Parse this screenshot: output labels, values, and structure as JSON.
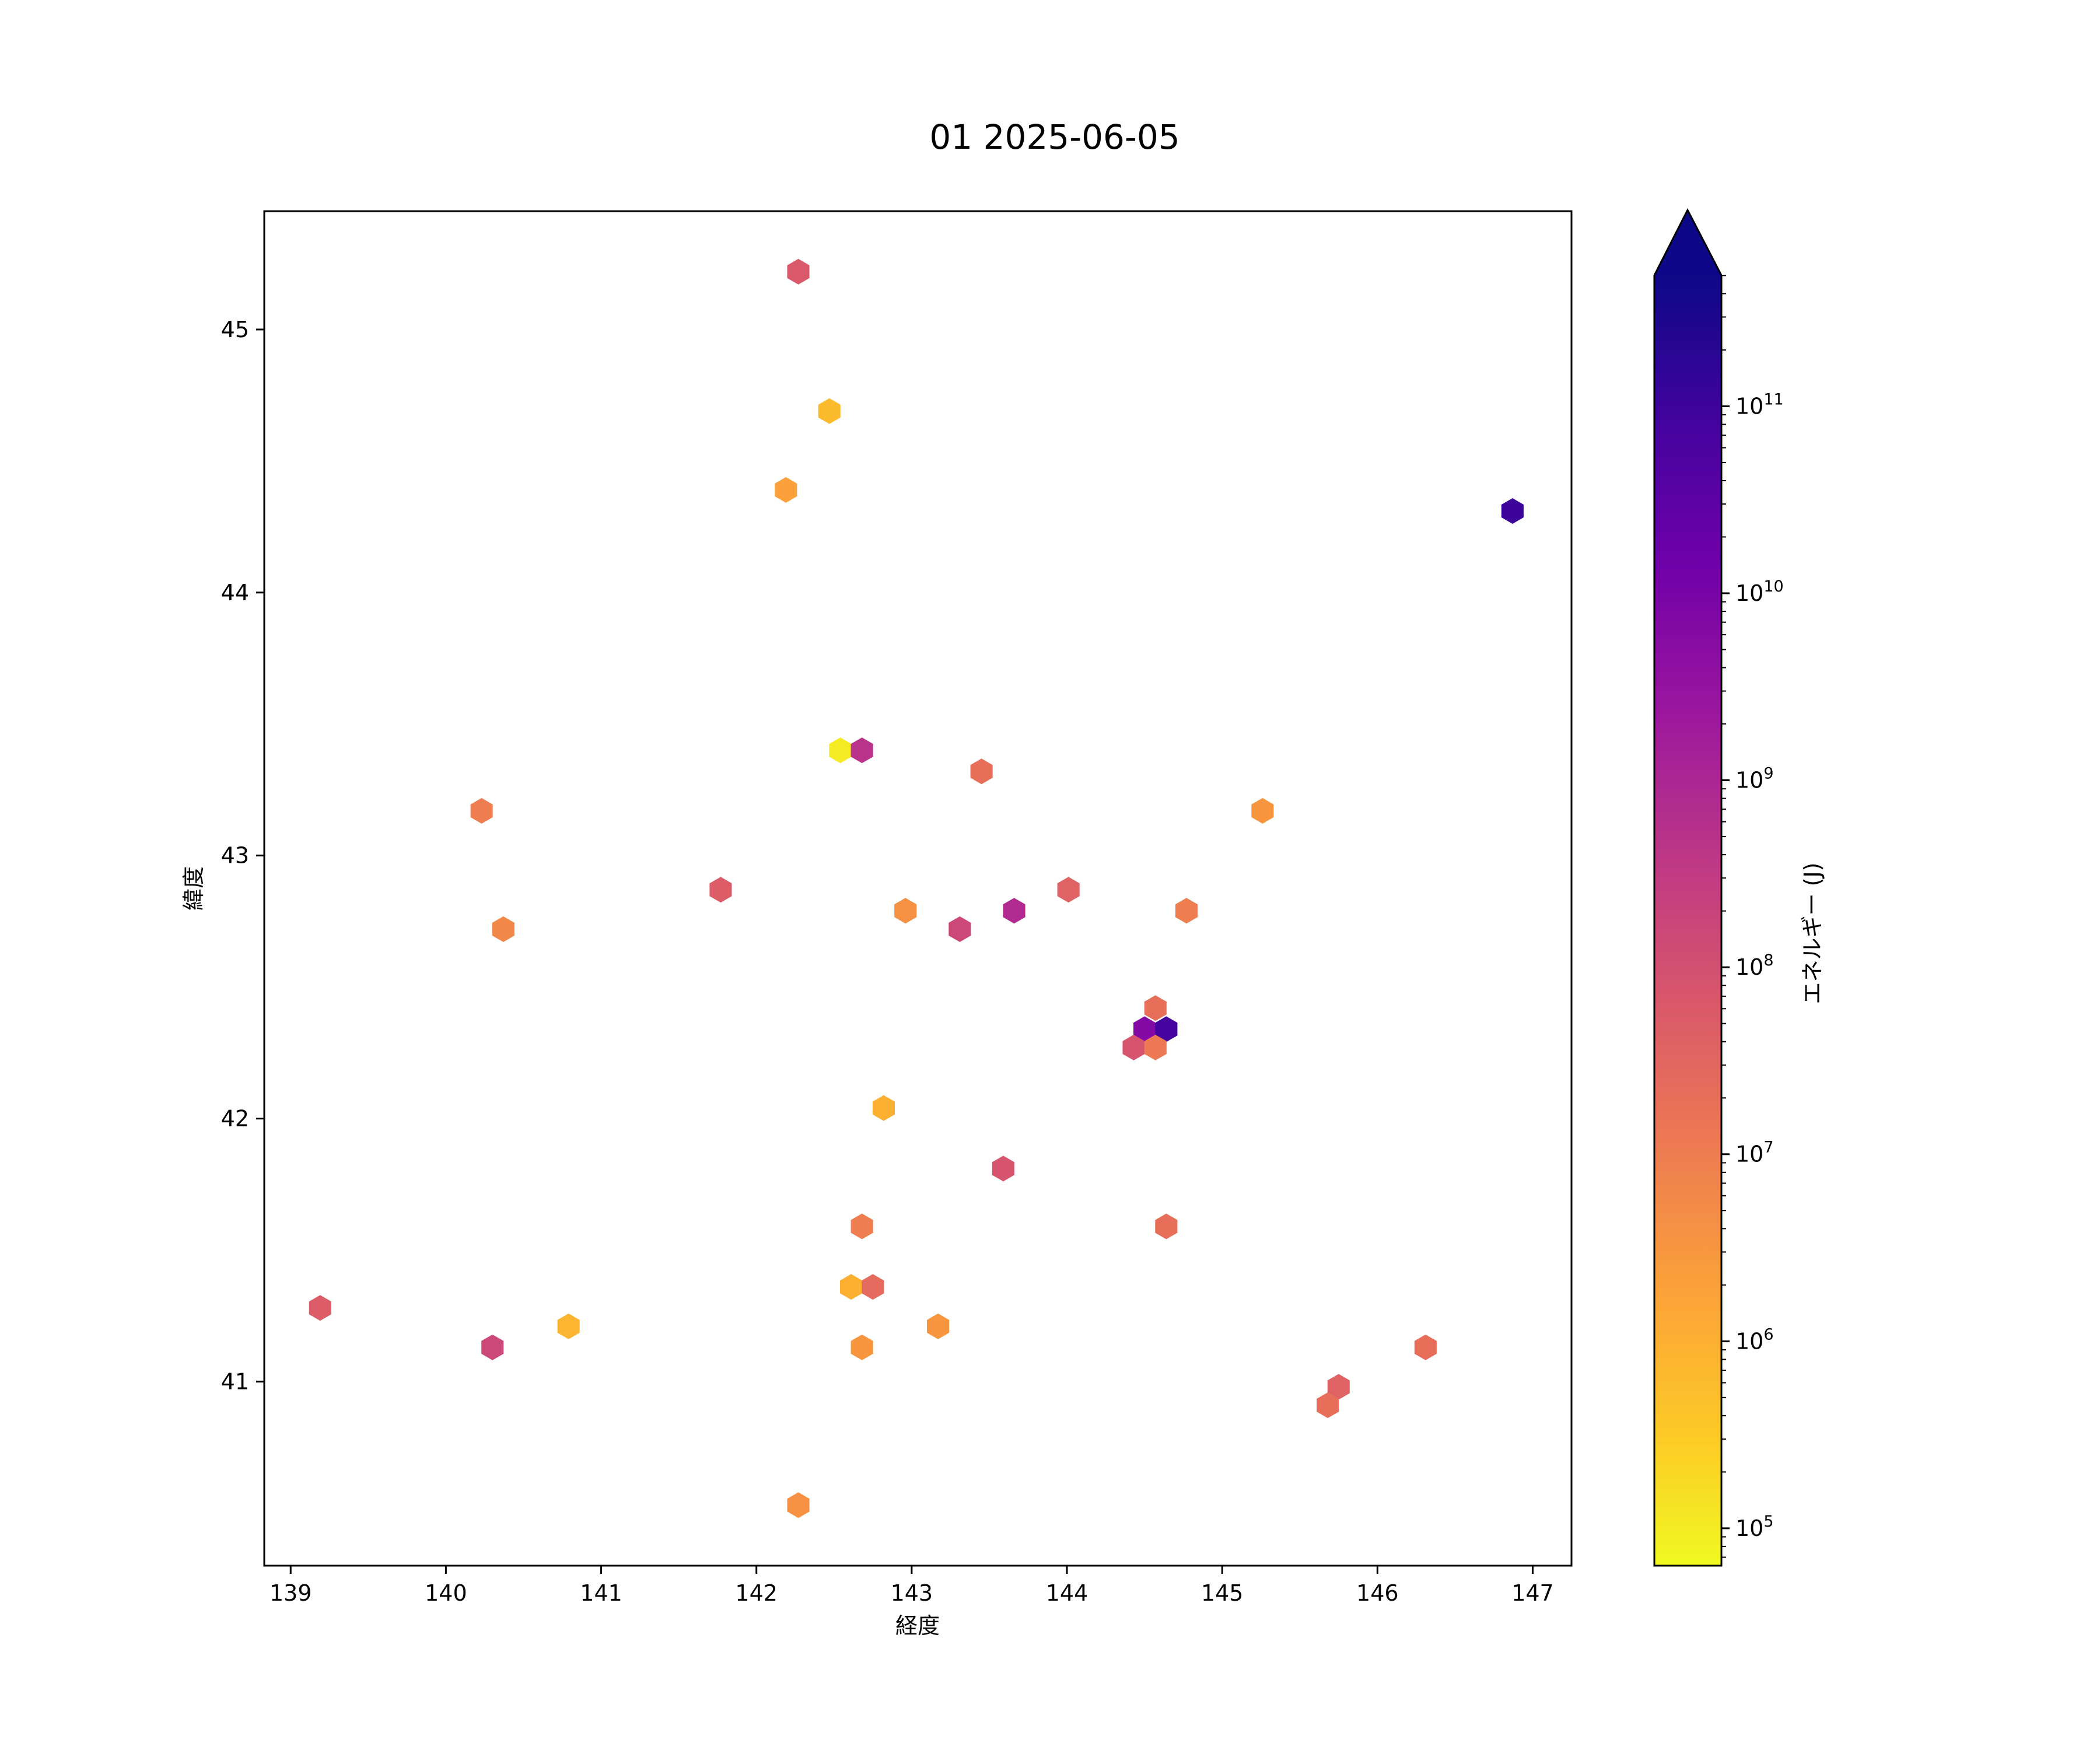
{
  "chart_data": {
    "type": "heatmap",
    "title": "01 2025-06-05",
    "xlabel": "経度",
    "ylabel": "緯度",
    "xlim": [
      138.83,
      147.25
    ],
    "ylim": [
      40.3,
      45.45
    ],
    "xticks": [
      139,
      140,
      141,
      142,
      143,
      144,
      145,
      146,
      147
    ],
    "yticks": [
      41,
      42,
      43,
      44,
      45
    ],
    "colorbar": {
      "label": "エネルギー (J)",
      "scale": "log",
      "colormap": "plasma",
      "range_exponent": [
        4.8,
        11.7
      ],
      "ticks": [
        {
          "exp": 5,
          "label": "10",
          "sup": "5"
        },
        {
          "exp": 6,
          "label": "10",
          "sup": "6"
        },
        {
          "exp": 7,
          "label": "10",
          "sup": "7"
        },
        {
          "exp": 8,
          "label": "10",
          "sup": "8"
        },
        {
          "exp": 9,
          "label": "10",
          "sup": "9"
        },
        {
          "exp": 10,
          "label": "10",
          "sup": "10"
        },
        {
          "exp": 11,
          "label": "10",
          "sup": "11"
        }
      ],
      "extend": "max",
      "extend_color": "#0d0887"
    },
    "points": [
      {
        "lon": 142.27,
        "lat": 45.22,
        "log_energy": 7.8
      },
      {
        "lon": 142.47,
        "lat": 44.69,
        "log_energy": 5.8
      },
      {
        "lon": 142.19,
        "lat": 44.39,
        "log_energy": 6.3
      },
      {
        "lon": 146.87,
        "lat": 44.31,
        "log_energy": 11.0
      },
      {
        "lon": 142.54,
        "lat": 43.4,
        "log_energy": 5.0
      },
      {
        "lon": 142.68,
        "lat": 43.4,
        "log_energy": 8.7
      },
      {
        "lon": 143.45,
        "lat": 43.32,
        "log_energy": 7.3
      },
      {
        "lon": 140.23,
        "lat": 43.17,
        "log_energy": 7.0
      },
      {
        "lon": 145.26,
        "lat": 43.17,
        "log_energy": 6.5
      },
      {
        "lon": 141.77,
        "lat": 42.87,
        "log_energy": 7.7
      },
      {
        "lon": 144.01,
        "lat": 42.87,
        "log_energy": 7.6
      },
      {
        "lon": 142.96,
        "lat": 42.79,
        "log_energy": 6.6
      },
      {
        "lon": 143.66,
        "lat": 42.79,
        "log_energy": 8.9
      },
      {
        "lon": 144.77,
        "lat": 42.79,
        "log_energy": 7.0
      },
      {
        "lon": 140.37,
        "lat": 42.72,
        "log_energy": 6.8
      },
      {
        "lon": 143.31,
        "lat": 42.72,
        "log_energy": 8.2
      },
      {
        "lon": 144.57,
        "lat": 42.42,
        "log_energy": 7.3
      },
      {
        "lon": 144.5,
        "lat": 42.34,
        "log_energy": 9.8
      },
      {
        "lon": 144.64,
        "lat": 42.34,
        "log_energy": 10.9
      },
      {
        "lon": 144.43,
        "lat": 42.27,
        "log_energy": 7.9
      },
      {
        "lon": 144.57,
        "lat": 42.27,
        "log_energy": 7.1
      },
      {
        "lon": 142.82,
        "lat": 42.04,
        "log_energy": 6.0
      },
      {
        "lon": 143.59,
        "lat": 41.81,
        "log_energy": 7.9
      },
      {
        "lon": 142.68,
        "lat": 41.59,
        "log_energy": 7.0
      },
      {
        "lon": 144.64,
        "lat": 41.59,
        "log_energy": 7.3
      },
      {
        "lon": 142.61,
        "lat": 41.36,
        "log_energy": 6.0
      },
      {
        "lon": 142.75,
        "lat": 41.36,
        "log_energy": 7.4
      },
      {
        "lon": 139.19,
        "lat": 41.28,
        "log_energy": 7.7
      },
      {
        "lon": 140.79,
        "lat": 41.21,
        "log_energy": 5.9
      },
      {
        "lon": 143.17,
        "lat": 41.21,
        "log_energy": 6.5
      },
      {
        "lon": 140.3,
        "lat": 41.13,
        "log_energy": 8.2
      },
      {
        "lon": 142.68,
        "lat": 41.13,
        "log_energy": 6.5
      },
      {
        "lon": 146.31,
        "lat": 41.13,
        "log_energy": 7.3
      },
      {
        "lon": 145.75,
        "lat": 40.98,
        "log_energy": 7.6
      },
      {
        "lon": 145.68,
        "lat": 40.91,
        "log_energy": 7.3
      },
      {
        "lon": 142.27,
        "lat": 40.53,
        "log_energy": 6.6
      }
    ]
  }
}
